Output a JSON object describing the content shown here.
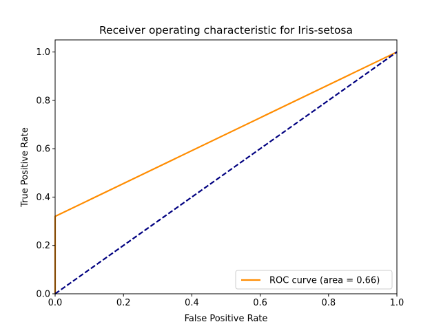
{
  "chart_data": {
    "type": "line",
    "title": "Receiver operating characteristic for Iris-setosa",
    "xlabel": "False Positive Rate",
    "ylabel": "True Positive Rate",
    "xlim": [
      0.0,
      1.0
    ],
    "ylim": [
      0.0,
      1.05
    ],
    "xticks": [
      "0.0",
      "0.2",
      "0.4",
      "0.6",
      "0.8",
      "1.0"
    ],
    "yticks": [
      "0.0",
      "0.2",
      "0.4",
      "0.6",
      "0.8",
      "1.0"
    ],
    "grid": false,
    "legend_position": "lower-right",
    "series": [
      {
        "name": "ROC curve (area = 0.66)",
        "color": "#ff8c00",
        "style": "solid",
        "x": [
          0.0,
          0.0,
          1.0
        ],
        "y": [
          0.0,
          0.32,
          1.0
        ]
      },
      {
        "color": "#000080",
        "style": "dashed",
        "x": [
          0.0,
          1.0
        ],
        "y": [
          0.0,
          1.0
        ]
      }
    ]
  }
}
